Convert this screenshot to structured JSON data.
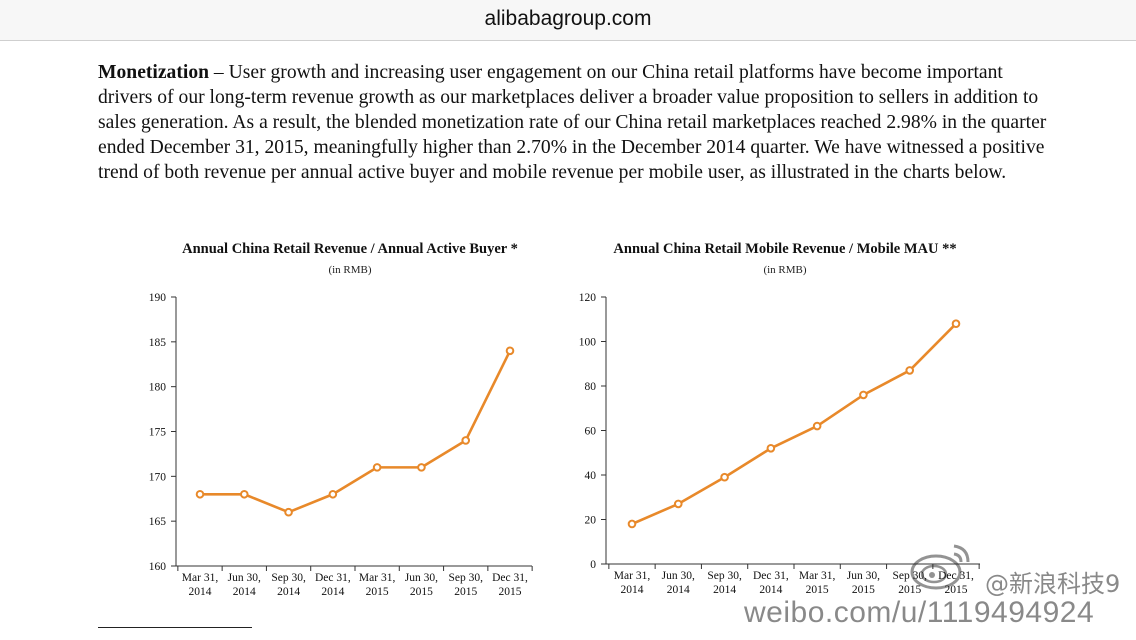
{
  "browser": {
    "domain": "alibabagroup.com"
  },
  "article": {
    "heading": "Monetization",
    "body": " – User growth and increasing user engagement on our China retail platforms have become important drivers of our long-term revenue growth as our marketplaces deliver a broader value proposition to sellers in addition to sales generation. As a result, the blended monetization rate of our China retail marketplaces reached 2.98% in the quarter ended December 31, 2015, meaningfully higher than 2.70% in the December 2014 quarter. We have witnessed a positive trend of both revenue per annual active buyer and mobile revenue per mobile user, as illustrated in the charts below."
  },
  "watermark": {
    "url": "weibo.com/u/1119494924",
    "name": "@新浪科技9"
  },
  "colors": {
    "line": "#e8892a",
    "axis": "#333333"
  },
  "chart_data": [
    {
      "type": "line",
      "title": "Annual China Retail Revenue / Annual Active Buyer *",
      "subtitle": "(in RMB)",
      "categories": [
        "Mar 31,\n2014",
        "Jun 30,\n2014",
        "Sep 30,\n2014",
        "Dec 31,\n2014",
        "Mar 31,\n2015",
        "Jun 30,\n2015",
        "Sep 30,\n2015",
        "Dec 31,\n2015"
      ],
      "values": [
        168,
        168,
        166,
        168,
        171,
        171,
        174,
        184
      ],
      "ylim": [
        160,
        190
      ],
      "yticks": [
        160,
        165,
        170,
        175,
        180,
        185,
        190
      ],
      "grid": false
    },
    {
      "type": "line",
      "title": "Annual China Retail Mobile Revenue / Mobile MAU **",
      "subtitle": "(in RMB)",
      "categories": [
        "Mar 31,\n2014",
        "Jun 30,\n2014",
        "Sep 30,\n2014",
        "Dec 31,\n2014",
        "Mar 31,\n2015",
        "Jun 30,\n2015",
        "Sep 30,\n2015",
        "Dec 31,\n2015"
      ],
      "values": [
        18,
        27,
        39,
        52,
        62,
        76,
        87,
        108
      ],
      "ylim": [
        0,
        120
      ],
      "yticks": [
        0,
        20,
        40,
        60,
        80,
        100,
        120
      ],
      "grid": false
    }
  ]
}
